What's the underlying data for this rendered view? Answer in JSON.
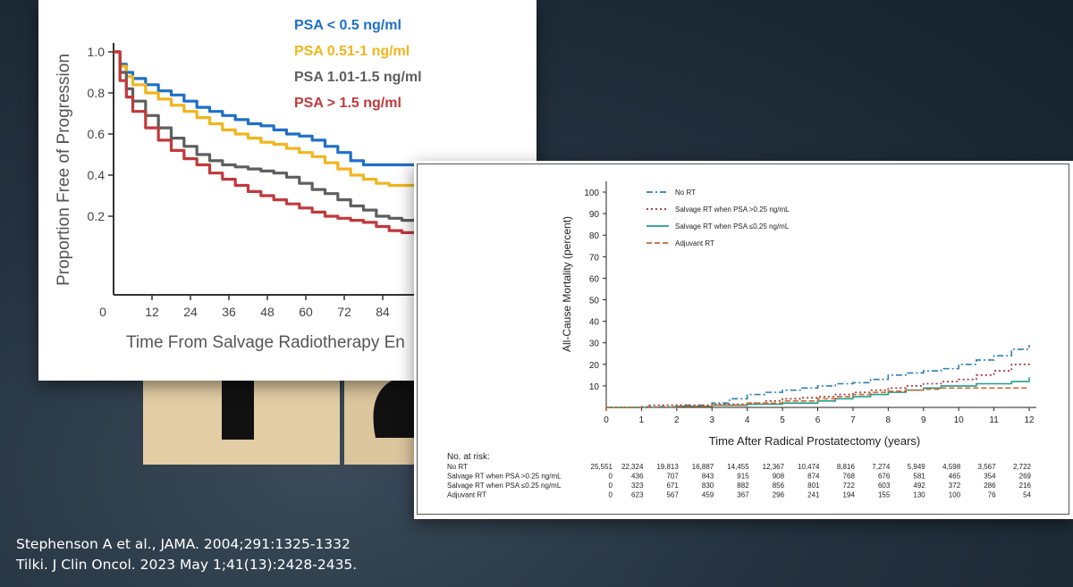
{
  "colors": {
    "background": "#1f2c38",
    "psa_lt_05": "#1f6fc6",
    "psa_051_1": "#f2b51c",
    "psa_101_15": "#5e5e5e",
    "psa_gt_15": "#c0393b",
    "no_rt": "#2f7fb0",
    "salvage_gt": "#a02a2a",
    "salvage_le": "#1e9f8f",
    "adjuvant": "#c8682e"
  },
  "chart_data": [
    {
      "type": "line",
      "ylabel": "Proportion Free of Progression",
      "xlabel": "Time From Salvage Radiotherapy En",
      "x_ticks": [
        "0",
        "12",
        "24",
        "36",
        "48",
        "60",
        "72",
        "84",
        "9"
      ],
      "y_ticks": [
        "1.0",
        "0.8",
        "0.6",
        "0.4",
        "0.2"
      ],
      "xlim": [
        0,
        96
      ],
      "ylim": [
        0,
        1.0
      ],
      "legend_position": "top-right",
      "series": [
        {
          "name": "PSA < 0.5 ng/ml",
          "color": "#1f6fc6",
          "x": [
            0,
            2,
            4,
            6,
            10,
            14,
            18,
            22,
            26,
            30,
            34,
            38,
            42,
            46,
            50,
            54,
            58,
            62,
            66,
            70,
            74,
            78,
            82,
            86,
            90,
            94,
            96
          ],
          "y": [
            1.0,
            0.94,
            0.9,
            0.87,
            0.84,
            0.81,
            0.79,
            0.76,
            0.73,
            0.71,
            0.69,
            0.67,
            0.65,
            0.64,
            0.62,
            0.6,
            0.59,
            0.57,
            0.54,
            0.51,
            0.47,
            0.45,
            0.45,
            0.45,
            0.45,
            0.45,
            0.45
          ]
        },
        {
          "name": "PSA 0.51-1 ng/ml",
          "color": "#f2b51c",
          "x": [
            0,
            2,
            4,
            6,
            10,
            14,
            18,
            22,
            26,
            30,
            34,
            38,
            42,
            46,
            50,
            54,
            58,
            62,
            66,
            70,
            74,
            78,
            82,
            86,
            90,
            94,
            96
          ],
          "y": [
            1.0,
            0.93,
            0.88,
            0.84,
            0.8,
            0.77,
            0.74,
            0.71,
            0.68,
            0.65,
            0.62,
            0.6,
            0.58,
            0.56,
            0.55,
            0.53,
            0.51,
            0.49,
            0.46,
            0.43,
            0.4,
            0.38,
            0.36,
            0.35,
            0.35,
            0.35,
            0.35
          ]
        },
        {
          "name": "PSA 1.01-1.5 ng/ml",
          "color": "#5e5e5e",
          "x": [
            0,
            2,
            4,
            6,
            10,
            14,
            18,
            22,
            26,
            30,
            34,
            38,
            42,
            46,
            50,
            54,
            58,
            62,
            66,
            70,
            74,
            78,
            82,
            86,
            90,
            94,
            96
          ],
          "y": [
            1.0,
            0.9,
            0.82,
            0.76,
            0.69,
            0.63,
            0.58,
            0.54,
            0.5,
            0.47,
            0.45,
            0.44,
            0.43,
            0.42,
            0.41,
            0.39,
            0.36,
            0.33,
            0.31,
            0.28,
            0.25,
            0.23,
            0.2,
            0.19,
            0.18,
            0.18,
            0.18
          ]
        },
        {
          "name": "PSA > 1.5 ng/ml",
          "color": "#c0393b",
          "x": [
            0,
            2,
            4,
            6,
            10,
            14,
            18,
            22,
            26,
            30,
            34,
            38,
            42,
            46,
            50,
            54,
            58,
            62,
            66,
            70,
            74,
            78,
            82,
            86,
            90,
            94,
            96
          ],
          "y": [
            1.0,
            0.86,
            0.78,
            0.71,
            0.63,
            0.57,
            0.52,
            0.48,
            0.45,
            0.41,
            0.38,
            0.35,
            0.32,
            0.3,
            0.28,
            0.26,
            0.24,
            0.22,
            0.2,
            0.19,
            0.18,
            0.17,
            0.15,
            0.13,
            0.12,
            0.12,
            0.12
          ]
        }
      ]
    },
    {
      "type": "line",
      "ylabel": "All-Cause Mortality (percent)",
      "xlabel": "Time After Radical Prostatectomy (years)",
      "x_ticks": [
        "0",
        "1",
        "2",
        "3",
        "4",
        "5",
        "6",
        "7",
        "8",
        "9",
        "10",
        "11",
        "12"
      ],
      "y_ticks": [
        "10",
        "20",
        "30",
        "40",
        "50",
        "60",
        "70",
        "80",
        "90",
        "100"
      ],
      "xlim": [
        0,
        12
      ],
      "ylim": [
        0,
        100
      ],
      "legend_position": "top-left",
      "series": [
        {
          "name": "No RT",
          "color": "#2f7fb0",
          "dash": "7,3,2,3",
          "x": [
            0,
            1,
            2,
            3,
            3.5,
            4,
            4.5,
            5,
            5.5,
            6,
            6.5,
            7,
            7.5,
            8,
            8.5,
            9,
            9.5,
            10,
            10.5,
            11,
            11.5,
            12
          ],
          "y": [
            0,
            0.3,
            1,
            2,
            4,
            6,
            7,
            8,
            9,
            10,
            11,
            11.5,
            13,
            15,
            16,
            17,
            18,
            20,
            22,
            24,
            27,
            29
          ]
        },
        {
          "name": "Salvage RT when PSA >0.25 ng/mL",
          "color": "#a02a2a",
          "dash": "2,3",
          "x": [
            0,
            1,
            1.2,
            2,
            3,
            4,
            4.5,
            5,
            5.5,
            6,
            6.5,
            7,
            7.5,
            8,
            8.5,
            9,
            9.5,
            10,
            10.5,
            11,
            11.5,
            12
          ],
          "y": [
            0,
            0,
            1,
            1,
            1.5,
            2,
            3,
            4,
            4.5,
            5,
            6,
            7,
            8,
            9,
            10,
            11,
            12,
            13,
            15,
            17,
            20,
            21
          ]
        },
        {
          "name": "Salvage RT when PSA ≤0.25 ng/mL",
          "color": "#1e9f8f",
          "dash": "",
          "x": [
            0,
            1,
            2,
            3,
            4,
            5,
            6,
            6.5,
            7,
            7.5,
            8,
            8.5,
            9,
            9.5,
            10,
            10.5,
            11,
            11.5,
            12
          ],
          "y": [
            0,
            0,
            0.5,
            1,
            1.5,
            2,
            3,
            4,
            5,
            6,
            7,
            8,
            9,
            10,
            10,
            11,
            11,
            12,
            14
          ]
        },
        {
          "name": "Adjuvant RT",
          "color": "#c8682e",
          "dash": "6,3",
          "x": [
            0,
            1,
            2,
            3,
            4,
            5,
            6,
            6.5,
            7,
            7.5,
            8,
            8.5,
            9,
            9.5,
            10,
            11,
            12
          ],
          "y": [
            0,
            0,
            0.5,
            1,
            2,
            3,
            4,
            5,
            6,
            7,
            7.5,
            8,
            8.5,
            9,
            9,
            9,
            9
          ]
        }
      ],
      "risk_table": {
        "title": "No. at risk:",
        "rows": [
          {
            "label": "No RT",
            "values": [
              "25,551",
              "22,324",
              "19,813",
              "16,887",
              "14,455",
              "12,367",
              "10,474",
              "8,816",
              "7,274",
              "5,949",
              "4,598",
              "3,567",
              "2,722"
            ]
          },
          {
            "label": "Salvage RT when PSA >0.25 ng/mL",
            "values": [
              "0",
              "436",
              "707",
              "843",
              "915",
              "908",
              "874",
              "768",
              "676",
              "581",
              "465",
              "354",
              "269"
            ]
          },
          {
            "label": "Salvage RT when PSA ≤0.25 ng/mL",
            "values": [
              "0",
              "323",
              "671",
              "830",
              "882",
              "856",
              "801",
              "722",
              "603",
              "492",
              "372",
              "286",
              "216"
            ]
          },
          {
            "label": "Adjuvant RT",
            "values": [
              "0",
              "623",
              "567",
              "459",
              "367",
              "296",
              "241",
              "194",
              "155",
              "130",
              "100",
              "76",
              "54"
            ]
          }
        ]
      }
    }
  ],
  "citations": [
    "Stephenson A et al., JAMA. 2004;291:1325-1332",
    "Tilki. J Clin Oncol. 2023 May 1;41(13):2428-2435."
  ]
}
